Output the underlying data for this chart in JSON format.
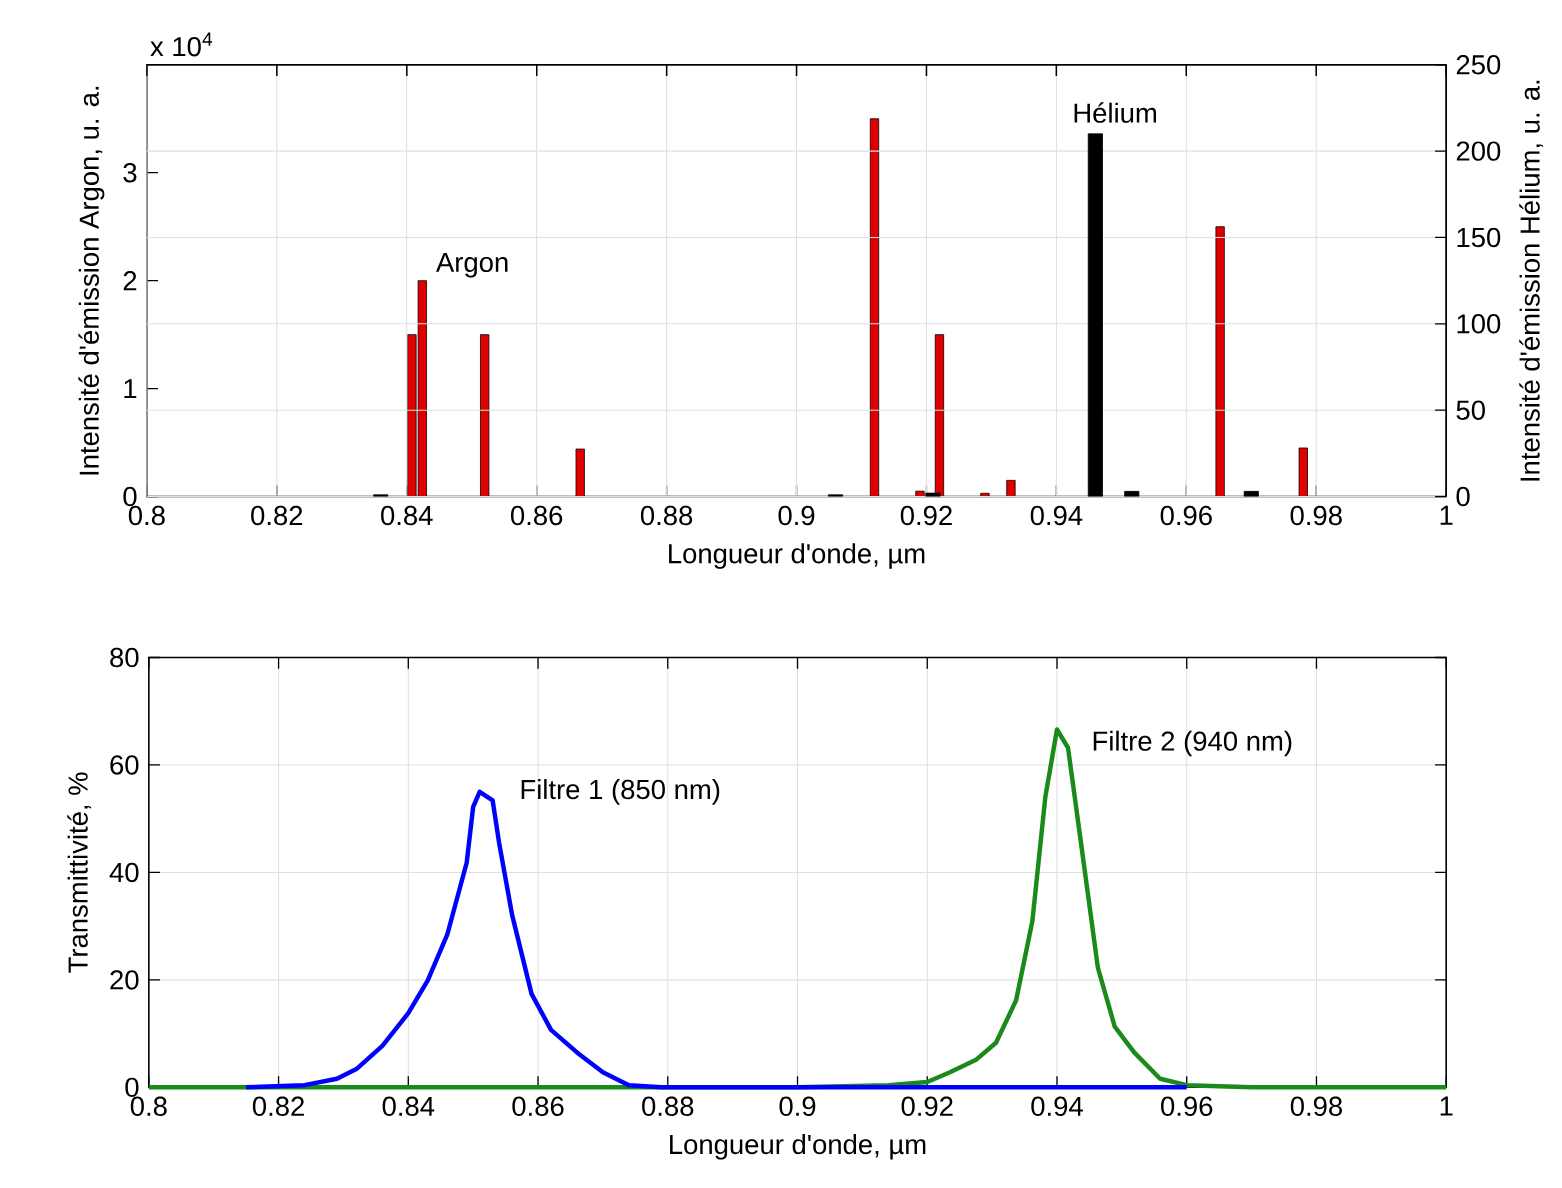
{
  "chart_data": [
    {
      "type": "bar",
      "xlabel": "Longueur d'onde, µm",
      "ylabel": "Intensité d'émission Argon, u. a.",
      "y2label": "Intensité d'émission Hélium, u. a.",
      "annotations": [
        "x 10$^{4}$",
        {
          "text": "Argon",
          "x": 0.8424,
          "y": 2
        },
        {
          "text": "Hélium",
          "x": 0.946,
          "y": 3.36
        }
      ],
      "xlim": [
        0.8,
        1
      ],
      "xticks": [
        0.8,
        0.82,
        0.84,
        0.86,
        0.88,
        0.9,
        0.92,
        0.94,
        0.96,
        0.98,
        1
      ],
      "ylim": [
        0,
        4
      ],
      "yticks": [
        0,
        1,
        2,
        3
      ],
      "y2lim": [
        0,
        250
      ],
      "y2ticks": [
        0,
        50,
        100,
        150,
        200,
        250
      ],
      "grid": true,
      "series": [
        {
          "color": "#e00000",
          "x": [
            0.8408,
            0.8424,
            0.852,
            0.8667,
            0.912,
            0.919,
            0.922,
            0.929,
            0.933,
            0.9652,
            0.978
          ],
          "values": [
            1.5,
            2,
            1.5,
            0.44,
            3.5,
            0.05,
            1.5,
            0.03,
            0.15,
            2.5,
            0.45
          ]
        },
        {
          "color": "#000000",
          "axis": "y2",
          "x": [
            0.836,
            0.906,
            0.921,
            0.946,
            0.9516,
            0.97
          ],
          "values": [
            1,
            1,
            2,
            210,
            3,
            3
          ]
        }
      ]
    },
    {
      "type": "line",
      "xlabel": "Longueur d'onde, µm",
      "ylabel": "Transmittivité, %",
      "annotations": [
        {
          "text": "Filtre 1 (850 nm)",
          "x": 0.851,
          "y": 55
        },
        {
          "text": "Filtre 2 (940 nm)",
          "x": 0.94,
          "y": 64
        }
      ],
      "xlim": [
        0.8,
        1
      ],
      "xticks": [
        0.8,
        0.82,
        0.84,
        0.86,
        0.88,
        0.9,
        0.92,
        0.94,
        0.96,
        0.98,
        1
      ],
      "ylim": [
        0,
        80
      ],
      "yticks": [
        0,
        20,
        40,
        60,
        80
      ],
      "grid": true,
      "series": [
        {
          "color": "#1a8a1a",
          "x": [
            0.8,
            0.9,
            0.914,
            0.92,
            0.9235,
            0.9276,
            0.9306,
            0.9337,
            0.9362,
            0.9382,
            0.94,
            0.9417,
            0.9437,
            0.9463,
            0.9489,
            0.9519,
            0.9559,
            0.96,
            0.97,
            1
          ],
          "values": [
            0,
            0,
            0.4,
            1,
            2.8,
            5.2,
            8.3,
            16.2,
            30.9,
            54,
            66.6,
            63.2,
            45.5,
            22.3,
            11.3,
            6.5,
            1.6,
            0.4,
            0,
            0
          ]
        },
        {
          "color": "#0000ff",
          "x": [
            0.815,
            0.824,
            0.829,
            0.832,
            0.836,
            0.84,
            0.843,
            0.846,
            0.849,
            0.85,
            0.851,
            0.853,
            0.854,
            0.856,
            0.859,
            0.862,
            0.866,
            0.87,
            0.874,
            0.879,
            0.96
          ],
          "values": [
            0,
            0.4,
            1.6,
            3.4,
            7.7,
            13.8,
            19.9,
            28.4,
            41.8,
            52.2,
            55,
            53.4,
            45.5,
            32.1,
            17.4,
            10.7,
            6.5,
            2.8,
            0.4,
            0,
            0
          ]
        }
      ]
    }
  ]
}
